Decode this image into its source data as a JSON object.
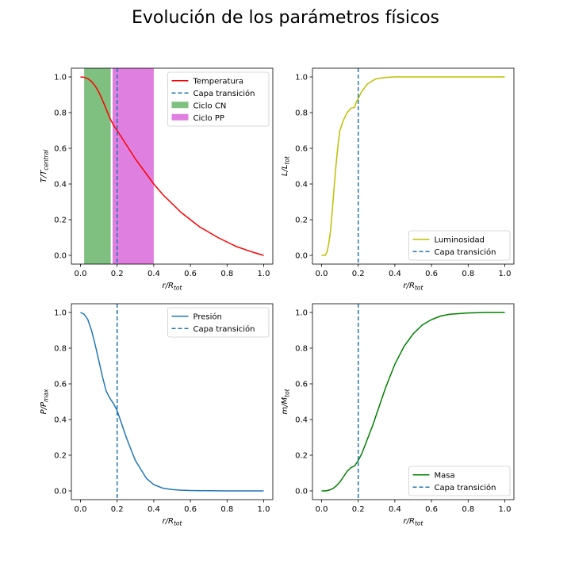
{
  "figure": {
    "title": "Evolución de los parámetros físicos"
  },
  "chart_data": [
    {
      "type": "line",
      "panel": "top-left",
      "xlabel": "r/R_tot",
      "ylabel": "T/T_central",
      "xlim": [
        0.0,
        1.0
      ],
      "ylim": [
        0.0,
        1.0
      ],
      "xticks": [
        "0.0",
        "0.2",
        "0.4",
        "0.6",
        "0.8",
        "1.0"
      ],
      "yticks": [
        "0.0",
        "0.2",
        "0.4",
        "0.6",
        "0.8",
        "1.0"
      ],
      "grid": false,
      "legend_position": "top-right",
      "transition_x": 0.2,
      "series": [
        {
          "name": "Temperatura",
          "color": "#ff0000",
          "x": [
            0.0,
            0.02,
            0.04,
            0.06,
            0.08,
            0.1,
            0.12,
            0.14,
            0.16,
            0.18,
            0.2,
            0.25,
            0.3,
            0.35,
            0.4,
            0.45,
            0.5,
            0.55,
            0.6,
            0.65,
            0.7,
            0.75,
            0.8,
            0.85,
            0.9,
            0.95,
            1.0
          ],
          "y": [
            1.0,
            0.998,
            0.99,
            0.975,
            0.95,
            0.915,
            0.87,
            0.82,
            0.77,
            0.73,
            0.7,
            0.62,
            0.54,
            0.47,
            0.4,
            0.34,
            0.29,
            0.24,
            0.2,
            0.16,
            0.13,
            0.1,
            0.075,
            0.05,
            0.032,
            0.015,
            0.0
          ]
        }
      ],
      "bands": [
        {
          "name": "Ciclo CN",
          "color": "#7fbf7f",
          "x_start": 0.02,
          "x_end": 0.165
        },
        {
          "name": "Ciclo PP",
          "color": "#df7fdf",
          "x_start": 0.175,
          "x_end": 0.4
        }
      ],
      "legend": [
        "Temperatura",
        "Capa transición",
        "Ciclo CN",
        "Ciclo PP"
      ]
    },
    {
      "type": "line",
      "panel": "top-right",
      "xlabel": "r/R_tot",
      "ylabel": "L/L_tot",
      "xlim": [
        0.0,
        1.0
      ],
      "ylim": [
        0.0,
        1.0
      ],
      "xticks": [
        "0.0",
        "0.2",
        "0.4",
        "0.6",
        "0.8",
        "1.0"
      ],
      "yticks": [
        "0.0",
        "0.2",
        "0.4",
        "0.6",
        "0.8",
        "1.0"
      ],
      "grid": false,
      "legend_position": "bottom-right",
      "transition_x": 0.2,
      "series": [
        {
          "name": "Luminosidad",
          "color": "#bfbf00",
          "x": [
            0.0,
            0.02,
            0.03,
            0.04,
            0.05,
            0.06,
            0.07,
            0.08,
            0.09,
            0.1,
            0.12,
            0.14,
            0.16,
            0.17,
            0.18,
            0.19,
            0.2,
            0.22,
            0.25,
            0.28,
            0.3,
            0.35,
            0.4,
            0.5,
            0.6,
            0.8,
            1.0
          ],
          "y": [
            0.0,
            0.0,
            0.02,
            0.07,
            0.15,
            0.27,
            0.4,
            0.52,
            0.62,
            0.7,
            0.76,
            0.8,
            0.825,
            0.827,
            0.83,
            0.86,
            0.88,
            0.92,
            0.96,
            0.98,
            0.99,
            0.997,
            1.0,
            1.0,
            1.0,
            1.0,
            1.0
          ]
        }
      ],
      "legend": [
        "Luminosidad",
        "Capa transición"
      ]
    },
    {
      "type": "line",
      "panel": "bottom-left",
      "xlabel": "r/R_tot",
      "ylabel": "P/P_max",
      "xlim": [
        0.0,
        1.0
      ],
      "ylim": [
        0.0,
        1.0
      ],
      "xticks": [
        "0.0",
        "0.2",
        "0.4",
        "0.6",
        "0.8",
        "1.0"
      ],
      "yticks": [
        "0.0",
        "0.2",
        "0.4",
        "0.6",
        "0.8",
        "1.0"
      ],
      "grid": false,
      "legend_position": "top-right",
      "transition_x": 0.2,
      "series": [
        {
          "name": "Presión",
          "color": "#1f77b4",
          "x": [
            0.0,
            0.02,
            0.04,
            0.06,
            0.08,
            0.1,
            0.12,
            0.14,
            0.16,
            0.18,
            0.2,
            0.22,
            0.25,
            0.28,
            0.3,
            0.33,
            0.36,
            0.4,
            0.45,
            0.5,
            0.55,
            0.6,
            0.7,
            0.8,
            1.0
          ],
          "y": [
            1.0,
            0.99,
            0.96,
            0.9,
            0.82,
            0.73,
            0.64,
            0.56,
            0.52,
            0.49,
            0.45,
            0.39,
            0.3,
            0.22,
            0.17,
            0.12,
            0.07,
            0.035,
            0.015,
            0.008,
            0.004,
            0.002,
            0.001,
            0.0,
            0.0
          ]
        }
      ],
      "legend": [
        "Presión",
        "Capa transición"
      ]
    },
    {
      "type": "line",
      "panel": "bottom-right",
      "xlabel": "r/R_tot",
      "ylabel": "m/M_tot",
      "xlim": [
        0.0,
        1.0
      ],
      "ylim": [
        0.0,
        1.0
      ],
      "xticks": [
        "0.0",
        "0.2",
        "0.4",
        "0.6",
        "0.8",
        "1.0"
      ],
      "yticks": [
        "0.0",
        "0.2",
        "0.4",
        "0.6",
        "0.8",
        "1.0"
      ],
      "grid": false,
      "legend_position": "bottom-right",
      "transition_x": 0.2,
      "series": [
        {
          "name": "Masa",
          "color": "#008000",
          "x": [
            0.0,
            0.02,
            0.04,
            0.06,
            0.08,
            0.1,
            0.12,
            0.14,
            0.16,
            0.17,
            0.18,
            0.2,
            0.22,
            0.25,
            0.28,
            0.3,
            0.35,
            0.4,
            0.45,
            0.5,
            0.55,
            0.6,
            0.65,
            0.7,
            0.8,
            0.9,
            1.0
          ],
          "y": [
            0.0,
            0.0,
            0.004,
            0.012,
            0.028,
            0.05,
            0.08,
            0.11,
            0.13,
            0.135,
            0.14,
            0.17,
            0.21,
            0.29,
            0.37,
            0.43,
            0.58,
            0.71,
            0.81,
            0.88,
            0.93,
            0.96,
            0.98,
            0.99,
            0.997,
            1.0,
            1.0
          ]
        }
      ],
      "legend": [
        "Masa",
        "Capa transición"
      ]
    }
  ],
  "legend_labels": {
    "transition": "Capa transición"
  },
  "colors": {
    "transition": "#1f77b4",
    "axis": "#000000"
  }
}
